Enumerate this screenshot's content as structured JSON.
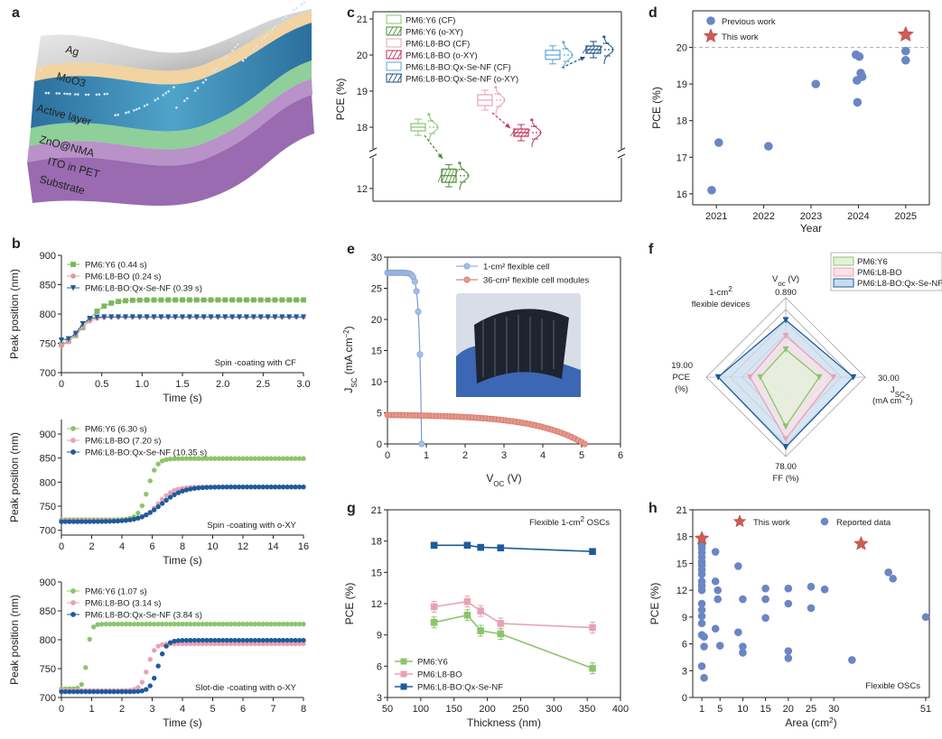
{
  "figure": {
    "panel_letters": [
      "a",
      "b",
      "c",
      "d",
      "e",
      "f",
      "g",
      "h"
    ]
  },
  "panel_a": {
    "layers": [
      "Ag",
      "MoO3",
      "Active layer",
      "ZnO@NMA",
      "ITO in PET",
      "Substrate"
    ],
    "colors": {
      "ag": "#d8d8d8",
      "moo3": "#f2d3a2",
      "active": "#3f8fb8",
      "zno": "#8fcf9a",
      "ito": "#b28dc3",
      "substrate": "#9a6bb0"
    }
  },
  "chart_data": [
    {
      "id": "b1",
      "type": "scatter",
      "xlabel": "Time (s)",
      "ylabel": "Peak position (nm)",
      "xlim": [
        0,
        3.0
      ],
      "ylim": [
        700,
        900
      ],
      "xticks": [
        "0",
        "0.5",
        "1.0",
        "1.5",
        "2.0",
        "2.5",
        "3.0"
      ],
      "yticks": [
        "700",
        "750",
        "800",
        "850",
        "900"
      ],
      "annotation": "Spin -coating with CF",
      "legend_position": "top-left",
      "series": [
        {
          "name": "PM6:Y6 (0.44 s)",
          "color": "#7db75c",
          "marker": "square",
          "t_transition": 0.3,
          "y_start": 742,
          "y_end": 824,
          "width": 0.12
        },
        {
          "name": "PM6:L8-BO (0.24 s)",
          "color": "#e597a9",
          "marker": "circle",
          "t_transition": 0.2,
          "y_start": 742,
          "y_end": 795,
          "width": 0.08
        },
        {
          "name": "PM6:L8-BO:Qx-Se-NF (0.39 s)",
          "color": "#1e5b9a",
          "marker": "triangle",
          "t_transition": 0.22,
          "y_start": 755,
          "y_end": 795,
          "width": 0.05
        }
      ]
    },
    {
      "id": "b2",
      "type": "scatter",
      "xlabel": "Time (s)",
      "ylabel": "Peak position (nm)",
      "xlim": [
        0,
        16
      ],
      "ylim": [
        690,
        930
      ],
      "xticks": [
        "0",
        "2",
        "4",
        "6",
        "8",
        "10",
        "12",
        "14",
        "16"
      ],
      "yticks": [
        "700",
        "750",
        "800",
        "850",
        "900"
      ],
      "annotation": "Spin -coating with o-XY",
      "legend_position": "top-left",
      "series": [
        {
          "name": "PM6:Y6 (6.30 s)",
          "color": "#8cc46c",
          "marker": "circle",
          "t_transition": 5.7,
          "y_start": 722,
          "y_end": 849,
          "width": 0.3
        },
        {
          "name": "PM6:L8-BO (7.20 s)",
          "color": "#e8a2b4",
          "marker": "circle",
          "t_transition": 6.4,
          "y_start": 720,
          "y_end": 790,
          "width": 0.5
        },
        {
          "name": "PM6:L8-BO:Qx-Se-NF (10.35 s)",
          "color": "#1e5b9a",
          "marker": "circle",
          "t_transition": 6.6,
          "y_start": 718,
          "y_end": 790,
          "width": 0.7
        }
      ]
    },
    {
      "id": "b3",
      "type": "scatter",
      "xlabel": "Time (s)",
      "ylabel": "Peak position (nm)",
      "xlim": [
        0,
        8
      ],
      "ylim": [
        700,
        900
      ],
      "xticks": [
        "0",
        "1",
        "2",
        "3",
        "4",
        "5",
        "6",
        "7",
        "8"
      ],
      "yticks": [
        "700",
        "750",
        "800",
        "850",
        "900"
      ],
      "annotation": "Slot-die -coating with o-XY",
      "legend_position": "top-left",
      "series": [
        {
          "name": "PM6:Y6 (1.07 s)",
          "color": "#8cc46c",
          "marker": "circle",
          "t_transition": 0.85,
          "y_start": 715,
          "y_end": 827,
          "width": 0.07
        },
        {
          "name": "PM6:L8-BO (3.14 s)",
          "color": "#e8a2b4",
          "marker": "circle",
          "t_transition": 2.85,
          "y_start": 712,
          "y_end": 793,
          "width": 0.12
        },
        {
          "name": "PM6:L8-BO:Qx-Se-NF (3.84 s)",
          "color": "#1e5b9a",
          "marker": "circle",
          "t_transition": 3.2,
          "y_start": 710,
          "y_end": 799,
          "width": 0.13
        }
      ]
    },
    {
      "id": "c",
      "type": "box",
      "ylabel": "PCE (%)",
      "yticks_upper": [
        "18",
        "19",
        "20",
        "21"
      ],
      "yticks_lower": [
        "12"
      ],
      "legend_position": "top-left",
      "series": [
        {
          "name": "PM6:Y6 (CF)",
          "color": "#8cc46c",
          "hatch": false,
          "median": 18.0,
          "q1": 17.95,
          "q3": 18.05
        },
        {
          "name": "PM6:Y6 (o-XY)",
          "color": "#4e8a35",
          "hatch": true,
          "median": 12.4,
          "q1": 12.25,
          "q3": 12.55
        },
        {
          "name": "PM6:L8-BO (CF)",
          "color": "#e8a2b4",
          "hatch": false,
          "median": 18.75,
          "q1": 18.65,
          "q3": 18.85
        },
        {
          "name": "PM6:L8-BO (o-XY)",
          "color": "#c2335a",
          "hatch": true,
          "median": 17.85,
          "q1": 17.8,
          "q3": 17.9
        },
        {
          "name": "PM6:L8-BO:Qx-Se-NF (CF)",
          "color": "#5aa7d6",
          "hatch": false,
          "median": 20.0,
          "q1": 19.93,
          "q3": 20.08
        },
        {
          "name": "PM6:L8-BO:Qx-Se-NF (o-XY)",
          "color": "#1a4f86",
          "hatch": true,
          "median": 20.15,
          "q1": 20.1,
          "q3": 20.2
        }
      ]
    },
    {
      "id": "d",
      "type": "scatter",
      "xlabel": "Year",
      "ylabel": "PCE (%)",
      "xlim": [
        2020.5,
        2025.5
      ],
      "ylim": [
        15.7,
        21.0
      ],
      "xticks": [
        "2021",
        "2022",
        "2023",
        "2024",
        "2025"
      ],
      "yticks": [
        "16",
        "17",
        "18",
        "19",
        "20"
      ],
      "reference_line": 20,
      "legend_position": "top-left",
      "series": [
        {
          "name": "Previous work",
          "color": "#6a86c4",
          "marker": "circle",
          "points": [
            [
              2020.9,
              16.1
            ],
            [
              2021.05,
              17.4
            ],
            [
              2022.1,
              17.3
            ],
            [
              2023.1,
              19.0
            ],
            [
              2023.95,
              19.8
            ],
            [
              2024.02,
              19.75
            ],
            [
              2024.05,
              19.3
            ],
            [
              2024.08,
              19.2
            ],
            [
              2023.97,
              19.1
            ],
            [
              2023.98,
              18.5
            ],
            [
              2025.0,
              19.9
            ],
            [
              2025.0,
              19.65
            ]
          ]
        },
        {
          "name": "This work",
          "color": "#d25a50",
          "marker": "star",
          "points": [
            [
              2025.0,
              20.35
            ]
          ]
        }
      ]
    },
    {
      "id": "e",
      "type": "line",
      "xlabel": "V_OC (V)",
      "ylabel": "J_SC (mA cm^-2)",
      "xlim": [
        0,
        6
      ],
      "ylim": [
        0,
        30
      ],
      "xticks": [
        "0",
        "1",
        "2",
        "3",
        "4",
        "5",
        "6"
      ],
      "yticks": [
        "0",
        "5",
        "10",
        "15",
        "20",
        "25",
        "30"
      ],
      "legend_position": "top-right",
      "series": [
        {
          "name": "1-cm² flexible cell",
          "color": "#7a9bd0",
          "jsc": 27.5,
          "voc": 0.88,
          "n": 0.075
        },
        {
          "name": "36-cm² flexible cell modules",
          "color": "#d6685c",
          "jsc": 4.65,
          "voc": 5.08,
          "n": 0.28
        }
      ]
    },
    {
      "id": "f",
      "type": "radar",
      "axes": [
        "V_oc (V)",
        "J_SC (mA cm^-2)",
        "FF (%)",
        "PCE (%)"
      ],
      "axis_max_labels": [
        "0.890",
        "30.00",
        "78.00",
        "19.00"
      ],
      "annotation": "1-cm² flexible devices",
      "legend_position": "top-right",
      "series": [
        {
          "name": "PM6:Y6",
          "color": "#8cc46c",
          "fill": "#e3f1d8",
          "values": [
            0.35,
            0.42,
            0.62,
            0.32
          ]
        },
        {
          "name": "PM6:L8-BO",
          "color": "#e8a2b4",
          "fill": "#f9e1e7",
          "values": [
            0.52,
            0.6,
            0.78,
            0.45
          ]
        },
        {
          "name": "PM6:L8-BO:Qx-Se-NF",
          "color": "#1e5b9a",
          "fill": "#c9dcee",
          "values": [
            0.72,
            0.85,
            0.88,
            0.85
          ]
        }
      ]
    },
    {
      "id": "g",
      "type": "line",
      "xlabel": "Thickness (nm)",
      "ylabel": "PCE (%)",
      "xlim": [
        50,
        400
      ],
      "ylim": [
        3,
        21
      ],
      "xticks": [
        "50",
        "100",
        "150",
        "200",
        "250",
        "300",
        "350",
        "400"
      ],
      "yticks": [
        "3",
        "6",
        "9",
        "12",
        "15",
        "18",
        "21"
      ],
      "annotation": "Flexible 1-cm² OSCs",
      "legend_position": "bottom-left",
      "series": [
        {
          "name": "PM6:Y6",
          "color": "#8cc46c",
          "marker": "square",
          "x": [
            120,
            170,
            190,
            220,
            358
          ],
          "y": [
            10.2,
            10.9,
            9.4,
            9.1,
            5.8
          ]
        },
        {
          "name": "PM6:L8-BO",
          "color": "#e8a2b4",
          "marker": "square",
          "x": [
            120,
            170,
            190,
            220,
            358
          ],
          "y": [
            11.7,
            12.2,
            11.3,
            10.1,
            9.7
          ]
        },
        {
          "name": "PM6:L8-BO:Qx-Se-NF",
          "color": "#1e5b9a",
          "marker": "square",
          "x": [
            120,
            170,
            190,
            220,
            358
          ],
          "y": [
            17.6,
            17.6,
            17.4,
            17.35,
            17.0
          ]
        }
      ]
    },
    {
      "id": "h",
      "type": "scatter",
      "xlabel": "Area (cm²)",
      "ylabel": "PCE (%)",
      "xlim": [
        -1,
        51
      ],
      "ylim": [
        0,
        21
      ],
      "xticks": [
        "1",
        "5",
        "10",
        "15",
        "20",
        "25",
        "30",
        "51"
      ],
      "yticks": [
        "0",
        "3",
        "6",
        "9",
        "12",
        "15",
        "18",
        "21"
      ],
      "annotation": "Flexible OSCs",
      "legend_position": "top",
      "series": [
        {
          "name": "This work",
          "color": "#d25a50",
          "marker": "star",
          "points": [
            [
              1,
              17.8
            ],
            [
              36,
              17.2
            ]
          ]
        },
        {
          "name": "Reported data",
          "color": "#6a86c4",
          "marker": "circle",
          "points": [
            [
              1,
              3.5
            ],
            [
              1,
              7.0
            ],
            [
              1,
              8.3
            ],
            [
              1,
              9.1
            ],
            [
              1,
              9.8
            ],
            [
              1,
              10.5
            ],
            [
              1,
              12.0
            ],
            [
              1,
              12.5
            ],
            [
              1,
              13.0
            ],
            [
              1,
              13.8
            ],
            [
              1,
              14.3
            ],
            [
              1,
              14.8
            ],
            [
              1,
              15.2
            ],
            [
              1,
              15.7
            ],
            [
              1,
              16.2
            ],
            [
              1,
              16.7
            ],
            [
              1,
              17.0
            ],
            [
              1.5,
              2.2
            ],
            [
              1.5,
              6.8
            ],
            [
              1.5,
              5.7
            ],
            [
              4,
              16.3
            ],
            [
              4,
              13.0
            ],
            [
              4,
              7.7
            ],
            [
              4.5,
              12.0
            ],
            [
              4.5,
              11.0
            ],
            [
              5,
              5.8
            ],
            [
              9,
              14.7
            ],
            [
              9,
              7.3
            ],
            [
              10,
              11.0
            ],
            [
              10,
              5.0
            ],
            [
              10,
              5.7
            ],
            [
              15,
              12.2
            ],
            [
              15,
              11.0
            ],
            [
              15,
              8.9
            ],
            [
              20,
              10.5
            ],
            [
              20,
              5.2
            ],
            [
              20,
              4.4
            ],
            [
              20,
              12.2
            ],
            [
              25,
              12.4
            ],
            [
              25,
              10.0
            ],
            [
              28,
              12.1
            ],
            [
              34,
              4.2
            ],
            [
              42,
              14.0
            ],
            [
              43,
              13.3
            ],
            [
              51,
              9.0
            ]
          ]
        }
      ]
    }
  ],
  "panel_e_inset": {
    "description_color": "#5a7fc0"
  }
}
